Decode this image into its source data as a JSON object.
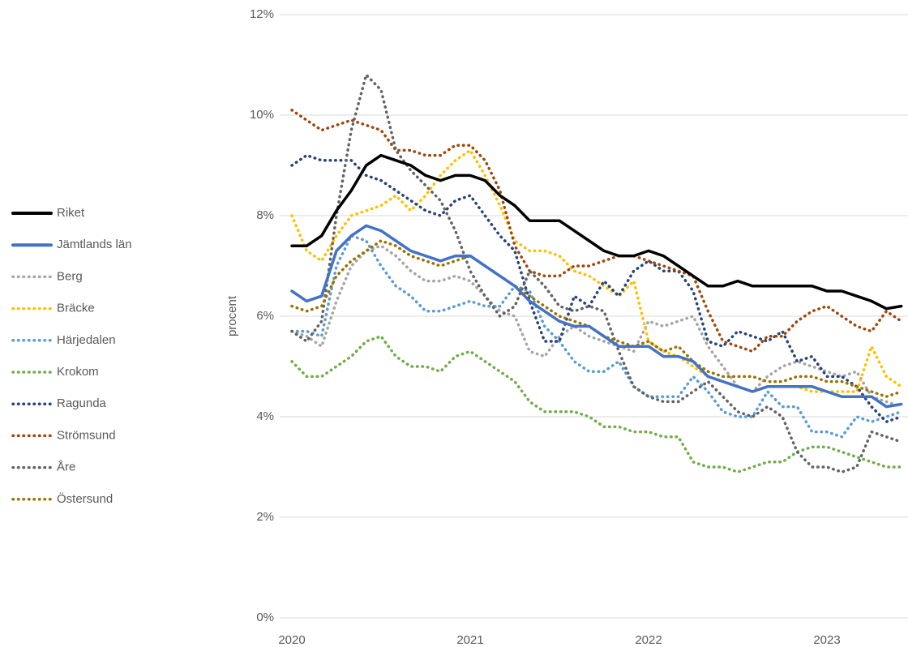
{
  "chart_data": {
    "type": "line",
    "y_axis_label": "procent",
    "categories": [
      "2020",
      null,
      null,
      null,
      null,
      null,
      null,
      null,
      null,
      null,
      null,
      null,
      "2021",
      null,
      null,
      null,
      null,
      null,
      null,
      null,
      null,
      null,
      null,
      null,
      "2022",
      null,
      null,
      null,
      null,
      null,
      null,
      null,
      null,
      null,
      null,
      null,
      "2023",
      null,
      null,
      null,
      null,
      null
    ],
    "ylim": [
      0,
      12
    ],
    "yticks": [
      {
        "value": 0,
        "label": "0%"
      },
      {
        "value": 2,
        "label": "2%"
      },
      {
        "value": 4,
        "label": "4%"
      },
      {
        "value": 6,
        "label": "6%"
      },
      {
        "value": 8,
        "label": "8%"
      },
      {
        "value": 10,
        "label": "10%"
      },
      {
        "value": 12,
        "label": "12%"
      }
    ],
    "grid": true,
    "legend": "left",
    "series": [
      {
        "name": "Riket",
        "color": "#000000",
        "style": "solid",
        "values": [
          7.4,
          7.4,
          7.6,
          8.1,
          8.5,
          9.0,
          9.2,
          9.1,
          9.0,
          8.8,
          8.7,
          8.8,
          8.8,
          8.7,
          8.4,
          8.2,
          7.9,
          7.9,
          7.9,
          7.7,
          7.5,
          7.3,
          7.2,
          7.2,
          7.3,
          7.2,
          7.0,
          6.8,
          6.6,
          6.6,
          6.7,
          6.6,
          6.6,
          6.6,
          6.6,
          6.6,
          6.5,
          6.5,
          6.4,
          6.3,
          6.15,
          6.2
        ]
      },
      {
        "name": "Jämtlands län",
        "color": "#4472c4",
        "style": "solid",
        "values": [
          6.5,
          6.3,
          6.4,
          7.3,
          7.6,
          7.8,
          7.7,
          7.5,
          7.3,
          7.2,
          7.1,
          7.2,
          7.2,
          7.0,
          6.8,
          6.6,
          6.3,
          6.1,
          5.9,
          5.8,
          5.8,
          5.6,
          5.4,
          5.4,
          5.4,
          5.2,
          5.2,
          5.1,
          4.8,
          4.7,
          4.6,
          4.5,
          4.6,
          4.6,
          4.6,
          4.6,
          4.5,
          4.4,
          4.4,
          4.4,
          4.2,
          4.25
        ]
      },
      {
        "name": "Berg",
        "color": "#a5a5a5",
        "style": "dotted",
        "values": [
          5.7,
          5.6,
          5.4,
          6.3,
          7.0,
          7.3,
          7.4,
          7.2,
          6.9,
          6.7,
          6.7,
          6.8,
          6.7,
          6.4,
          6.1,
          6.0,
          5.3,
          5.2,
          5.6,
          5.8,
          5.6,
          5.5,
          5.4,
          5.3,
          5.9,
          5.8,
          5.9,
          6.0,
          5.4,
          5.0,
          4.6,
          4.5,
          4.8,
          5.0,
          5.1,
          5.0,
          4.9,
          4.8,
          4.9,
          4.4,
          4.3,
          4.2
        ]
      },
      {
        "name": "Bräcke",
        "color": "#ffc000",
        "style": "dotted",
        "values": [
          8.0,
          7.3,
          7.1,
          7.6,
          8.0,
          8.1,
          8.2,
          8.4,
          8.1,
          8.4,
          8.8,
          9.1,
          9.3,
          8.8,
          8.2,
          7.5,
          7.3,
          7.3,
          7.2,
          6.9,
          6.8,
          6.6,
          6.4,
          6.7,
          5.5,
          5.3,
          5.2,
          5.0,
          4.8,
          4.7,
          4.6,
          4.5,
          4.6,
          4.6,
          4.6,
          4.5,
          4.5,
          4.5,
          4.5,
          5.4,
          4.8,
          4.6
        ]
      },
      {
        "name": "Härjedalen",
        "color": "#5b9bd5",
        "style": "dotted",
        "values": [
          5.7,
          5.7,
          5.6,
          7.0,
          7.6,
          7.5,
          7.0,
          6.6,
          6.4,
          6.1,
          6.1,
          6.2,
          6.3,
          6.2,
          6.2,
          6.6,
          6.5,
          5.8,
          5.5,
          5.1,
          4.9,
          4.9,
          5.1,
          4.6,
          4.4,
          4.4,
          4.4,
          4.8,
          4.5,
          4.1,
          4.0,
          4.0,
          4.5,
          4.2,
          4.2,
          3.7,
          3.7,
          3.6,
          4.0,
          3.9,
          4.0,
          4.1
        ]
      },
      {
        "name": "Krokom",
        "color": "#70ad47",
        "style": "dotted",
        "values": [
          5.1,
          4.8,
          4.8,
          5.0,
          5.2,
          5.5,
          5.6,
          5.2,
          5.0,
          5.0,
          4.9,
          5.2,
          5.3,
          5.1,
          4.9,
          4.7,
          4.3,
          4.1,
          4.1,
          4.1,
          4.0,
          3.8,
          3.8,
          3.7,
          3.7,
          3.6,
          3.6,
          3.1,
          3.0,
          3.0,
          2.9,
          3.0,
          3.1,
          3.1,
          3.3,
          3.4,
          3.4,
          3.3,
          3.2,
          3.1,
          3.0,
          3.0
        ]
      },
      {
        "name": "Ragunda",
        "color": "#264478",
        "style": "dotted",
        "values": [
          9.0,
          9.2,
          9.1,
          9.1,
          9.1,
          8.8,
          8.7,
          8.5,
          8.3,
          8.1,
          8.0,
          8.3,
          8.4,
          8.0,
          7.6,
          7.3,
          6.3,
          5.5,
          5.5,
          6.4,
          6.2,
          6.7,
          6.4,
          6.9,
          7.1,
          6.9,
          6.9,
          6.5,
          5.5,
          5.4,
          5.7,
          5.6,
          5.5,
          5.7,
          5.1,
          5.2,
          4.8,
          4.8,
          4.6,
          4.2,
          3.9,
          4.0
        ]
      },
      {
        "name": "Strömsund",
        "color": "#9e480e",
        "style": "dotted",
        "values": [
          10.1,
          9.9,
          9.7,
          9.8,
          9.9,
          9.8,
          9.7,
          9.3,
          9.3,
          9.2,
          9.2,
          9.4,
          9.4,
          9.1,
          8.5,
          7.4,
          6.9,
          6.8,
          6.8,
          7.0,
          7.0,
          7.1,
          7.2,
          7.2,
          7.1,
          7.0,
          6.9,
          6.8,
          6.1,
          5.5,
          5.4,
          5.3,
          5.6,
          5.6,
          5.9,
          6.1,
          6.2,
          6.0,
          5.8,
          5.7,
          6.1,
          5.9
        ]
      },
      {
        "name": "Åre",
        "color": "#636363",
        "style": "dotted",
        "values": [
          5.7,
          5.5,
          5.9,
          8.0,
          9.7,
          10.8,
          10.5,
          9.3,
          8.9,
          8.6,
          8.3,
          7.7,
          6.9,
          6.4,
          6.0,
          6.2,
          6.9,
          6.6,
          6.2,
          6.1,
          6.2,
          6.1,
          5.3,
          4.6,
          4.4,
          4.3,
          4.3,
          4.5,
          4.7,
          4.4,
          4.1,
          4.0,
          4.2,
          4.0,
          3.3,
          3.0,
          3.0,
          2.9,
          3.0,
          3.7,
          3.6,
          3.5
        ]
      },
      {
        "name": "Östersund",
        "color": "#997300",
        "style": "dotted",
        "values": [
          6.2,
          6.1,
          6.2,
          6.8,
          7.1,
          7.3,
          7.5,
          7.4,
          7.2,
          7.1,
          7.0,
          7.1,
          7.2,
          7.0,
          6.8,
          6.6,
          6.4,
          6.2,
          6.0,
          5.9,
          5.8,
          5.6,
          5.5,
          5.4,
          5.5,
          5.3,
          5.4,
          5.1,
          4.9,
          4.8,
          4.8,
          4.8,
          4.7,
          4.7,
          4.8,
          4.8,
          4.7,
          4.7,
          4.6,
          4.5,
          4.4,
          4.5
        ]
      }
    ]
  }
}
